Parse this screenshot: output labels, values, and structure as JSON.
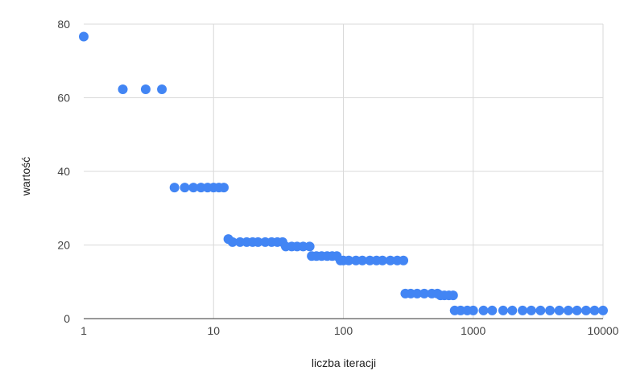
{
  "chart_data": {
    "type": "scatter",
    "xlabel": "liczba iteracji",
    "ylabel": "wartość",
    "x_scale": "log",
    "xlim": [
      1,
      10000
    ],
    "ylim": [
      0,
      80
    ],
    "x_ticks": [
      1,
      10,
      100,
      1000,
      10000
    ],
    "x_tick_labels": [
      "1",
      "10",
      "100",
      "1000",
      "10000"
    ],
    "y_ticks": [
      0,
      20,
      40,
      60,
      80
    ],
    "y_tick_labels": [
      "0",
      "20",
      "40",
      "60",
      "80"
    ],
    "grid": true,
    "legend": "none",
    "marker_color": "#4285f4",
    "x": [
      1,
      2,
      3,
      4,
      5,
      6,
      7,
      8,
      9,
      10,
      11,
      12,
      13,
      14,
      16,
      18,
      20,
      22,
      25,
      28,
      31,
      34,
      36,
      40,
      44,
      49,
      55,
      57,
      62,
      68,
      75,
      82,
      89,
      95,
      100,
      110,
      125,
      140,
      160,
      180,
      200,
      230,
      260,
      290,
      300,
      330,
      370,
      420,
      480,
      530,
      560,
      600,
      650,
      700,
      720,
      800,
      900,
      1000,
      1200,
      1400,
      1700,
      2000,
      2400,
      2800,
      3300,
      3900,
      4600,
      5400,
      6300,
      7400,
      8600,
      10000
    ],
    "y": [
      76.6,
      62.3,
      62.3,
      62.3,
      35.6,
      35.6,
      35.6,
      35.6,
      35.6,
      35.6,
      35.6,
      35.6,
      21.6,
      20.8,
      20.8,
      20.8,
      20.8,
      20.8,
      20.8,
      20.8,
      20.8,
      20.8,
      19.6,
      19.6,
      19.6,
      19.6,
      19.6,
      17.0,
      17.0,
      17.0,
      17.0,
      17.0,
      17.0,
      15.8,
      15.8,
      15.8,
      15.8,
      15.8,
      15.8,
      15.8,
      15.8,
      15.8,
      15.8,
      15.8,
      6.8,
      6.8,
      6.8,
      6.8,
      6.8,
      6.8,
      6.3,
      6.3,
      6.3,
      6.3,
      2.2,
      2.2,
      2.2,
      2.2,
      2.2,
      2.2,
      2.2,
      2.2,
      2.2,
      2.2,
      2.2,
      2.2,
      2.2,
      2.2,
      2.2,
      2.2,
      2.2,
      2.2
    ]
  }
}
